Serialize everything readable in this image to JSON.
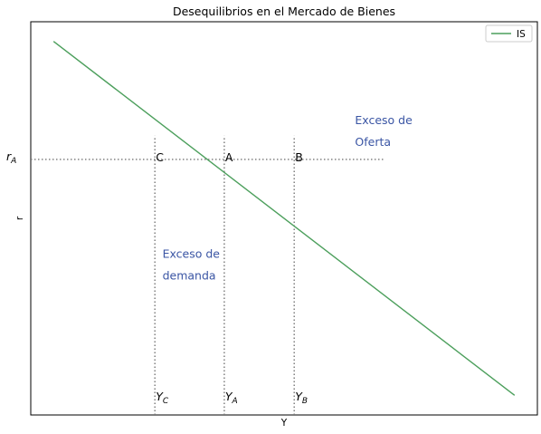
{
  "chart_data": {
    "type": "line",
    "title": "Desequilibrios en el Mercado de Bienes",
    "xlabel": "Y",
    "ylabel": "r",
    "xlim": [
      0,
      10
    ],
    "ylim": [
      0,
      10
    ],
    "grid": false,
    "legend_position": "top-right",
    "series": [
      {
        "name": "IS",
        "color": "#4c9f5c",
        "x": [
          0.45,
          9.55
        ],
        "y": [
          9.5,
          0.5
        ]
      }
    ],
    "hline": {
      "y": 6.5,
      "x_to": 7
    },
    "vlines": [
      {
        "x": 2.45,
        "y_to": 7.1
      },
      {
        "x": 3.82,
        "y_to": 7.1
      },
      {
        "x": 5.2,
        "y_to": 7.1
      }
    ],
    "points": [
      {
        "label": "C",
        "x": 2.45,
        "y": 6.5
      },
      {
        "label": "A",
        "x": 3.82,
        "y": 6.5
      },
      {
        "label": "B",
        "x": 5.2,
        "y": 6.5
      }
    ],
    "y_tick_labels": [
      {
        "main": "r",
        "sub": "A",
        "y": 6.5
      }
    ],
    "x_var_labels": [
      {
        "main": "Y",
        "sub": "C",
        "x": 2.45
      },
      {
        "main": "Y",
        "sub": "A",
        "x": 3.82
      },
      {
        "main": "Y",
        "sub": "B",
        "x": 5.2
      }
    ],
    "annotations": [
      {
        "lines": [
          "Exceso de",
          "Oferta"
        ],
        "x": 6.4,
        "y": 7.4
      },
      {
        "lines": [
          "Exceso de",
          "demanda"
        ],
        "x": 2.6,
        "y": 4.0
      }
    ],
    "ref_color": "#777777",
    "annotation_color": "#3a55a4"
  }
}
